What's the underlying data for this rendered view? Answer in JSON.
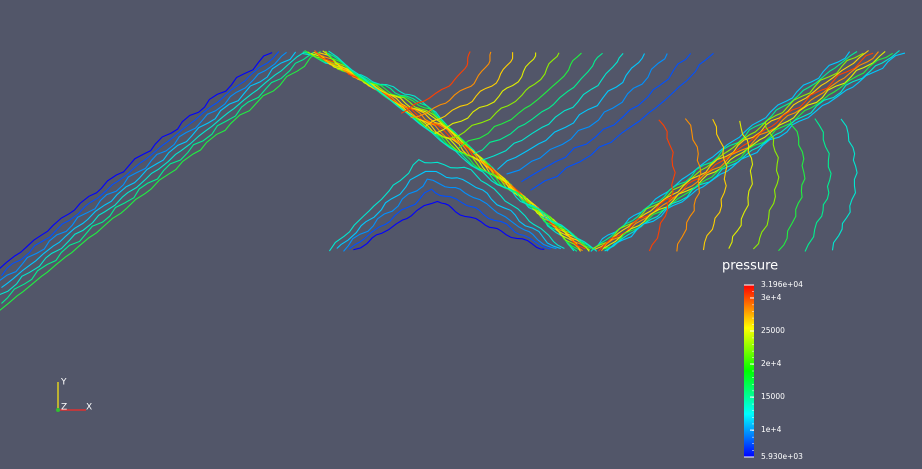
{
  "colorbar": {
    "title": "pressure",
    "max": {
      "value": 31960,
      "label": "3.196e+04"
    },
    "min": {
      "value": 5930,
      "label": "5.930e+03"
    },
    "ticks": [
      {
        "value": 30000,
        "label": "3e+4"
      },
      25000,
      {
        "value": 20000,
        "label": "2e+4"
      },
      15000,
      {
        "value": 10000,
        "label": "1e+4"
      }
    ]
  },
  "axes": {
    "x": "X",
    "y": "Y",
    "z": "Z"
  }
}
